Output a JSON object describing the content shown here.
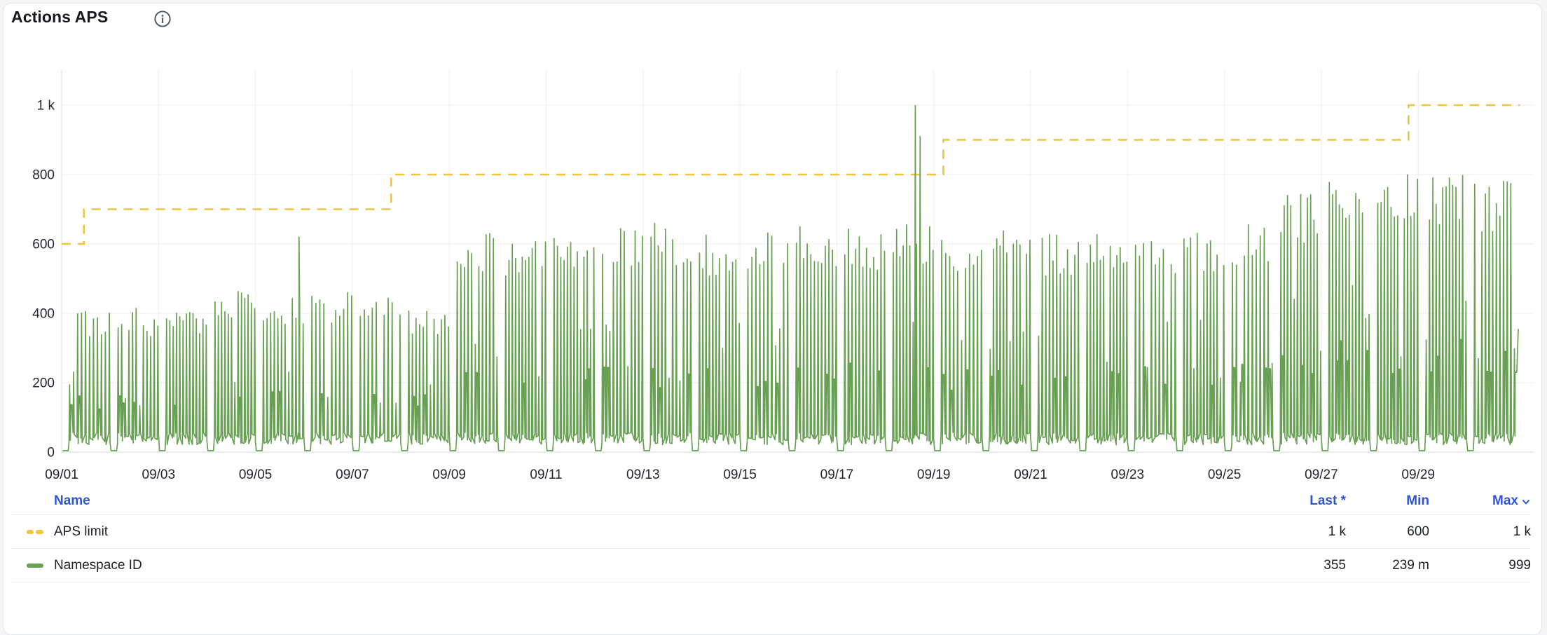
{
  "panel": {
    "title": "Actions APS",
    "info_icon": "info-icon"
  },
  "colors": {
    "accent_blue": "#2f55d4",
    "limit_yellow": "#ecc63e",
    "series_green": "#68a054",
    "grid": "#ededef",
    "axis": "#d7dade",
    "tick_text": "#22262c"
  },
  "chart_data": {
    "type": "line",
    "title": "Actions APS",
    "x_axis": {
      "unit": "date (MM/DD)",
      "tick_labels": [
        "09/01",
        "09/03",
        "09/05",
        "09/07",
        "09/09",
        "09/11",
        "09/13",
        "09/15",
        "09/17",
        "09/19",
        "09/21",
        "09/23",
        "09/25",
        "09/27",
        "09/29"
      ],
      "tick_days": [
        0,
        2,
        4,
        6,
        8,
        10,
        12,
        14,
        16,
        18,
        20,
        22,
        24,
        26,
        28
      ],
      "start_day": 0,
      "end_day": 30.1
    },
    "y_axis": {
      "tick_labels": [
        "0",
        "200",
        "400",
        "600",
        "800",
        "1 k"
      ],
      "tick_values": [
        0,
        200,
        400,
        600,
        800,
        1000
      ],
      "min": 0,
      "max": 1060,
      "grid": true
    },
    "legend_position": "bottom-table",
    "series": [
      {
        "name": "APS limit",
        "color": "#ecc63e",
        "line_style": "dashed",
        "type": "step",
        "points": [
          [
            0,
            600
          ],
          [
            0.46,
            600
          ],
          [
            0.46,
            700
          ],
          [
            6.8,
            700
          ],
          [
            6.8,
            800
          ],
          [
            18.2,
            800
          ],
          [
            18.2,
            900
          ],
          [
            27.8,
            900
          ],
          [
            27.8,
            1000
          ],
          [
            30.1,
            1000
          ]
        ],
        "stats": {
          "last": "1 k",
          "min": "600",
          "max": "1 k"
        }
      },
      {
        "name": "Namespace ID",
        "color": "#68a054",
        "line_style": "solid",
        "type": "spiky-daily",
        "baseline": 4,
        "spike_low": 35,
        "daily_peaks": [
          410,
          415,
          420,
          465,
          455,
          460,
          450,
          415,
          630,
          620,
          640,
          665,
          660,
          630,
          640,
          650,
          645,
          670,
          635,
          645,
          630,
          635,
          630,
          650,
          670,
          745,
          825,
          800,
          815,
          790
        ],
        "special_points": [
          [
            4.9,
            620
          ],
          [
            17.62,
            999
          ],
          [
            17.72,
            910
          ]
        ],
        "end_points": [
          [
            30.0,
            230
          ],
          [
            30.035,
            230
          ],
          [
            30.065,
            355
          ]
        ],
        "stats": {
          "last": "355",
          "min": "239 m",
          "max": "999"
        }
      }
    ]
  },
  "legend_table": {
    "columns": {
      "name": "Name",
      "last": "Last *",
      "min": "Min",
      "max": "Max"
    },
    "sorted_by": "max",
    "rows": [
      {
        "name": "APS limit",
        "swatch": "yellow-dashed",
        "last": "1 k",
        "min": "600",
        "max": "1 k"
      },
      {
        "name": "Namespace ID",
        "swatch": "green-solid",
        "last": "355",
        "min": "239 m",
        "max": "999"
      }
    ]
  }
}
